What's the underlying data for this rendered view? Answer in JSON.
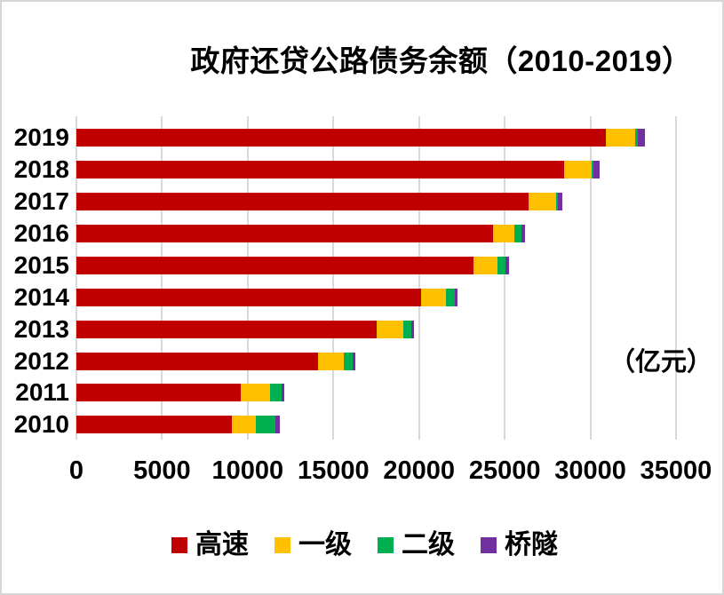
{
  "chart_data": {
    "type": "bar",
    "orientation": "horizontal",
    "stacked": true,
    "title": "政府还贷公路债务余额（2010-2019）",
    "unit_label": "（亿元）",
    "categories": [
      "2019",
      "2018",
      "2017",
      "2016",
      "2015",
      "2014",
      "2013",
      "2012",
      "2011",
      "2010"
    ],
    "series": [
      {
        "name": "高速",
        "color": "#C00000",
        "values": [
          30900,
          28450,
          26400,
          24300,
          23200,
          20100,
          17550,
          14100,
          9600,
          9050
        ]
      },
      {
        "name": "一级",
        "color": "#FFC000",
        "values": [
          1700,
          1600,
          1600,
          1280,
          1380,
          1450,
          1530,
          1500,
          1700,
          1450
        ]
      },
      {
        "name": "二级",
        "color": "#00B050",
        "values": [
          150,
          150,
          100,
          420,
          460,
          550,
          460,
          520,
          680,
          1130
        ]
      },
      {
        "name": "桥隧",
        "color": "#7030A0",
        "values": [
          420,
          360,
          240,
          180,
          210,
          170,
          140,
          140,
          170,
          220
        ]
      }
    ],
    "xlim": [
      0,
      35000
    ],
    "xticks": [
      0,
      5000,
      10000,
      15000,
      20000,
      25000,
      30000,
      35000
    ],
    "grid": "vertical",
    "legend_position": "bottom",
    "gridline_color": "#d9d9d9",
    "text_color": "#000000",
    "background_color": "#ffffff"
  }
}
